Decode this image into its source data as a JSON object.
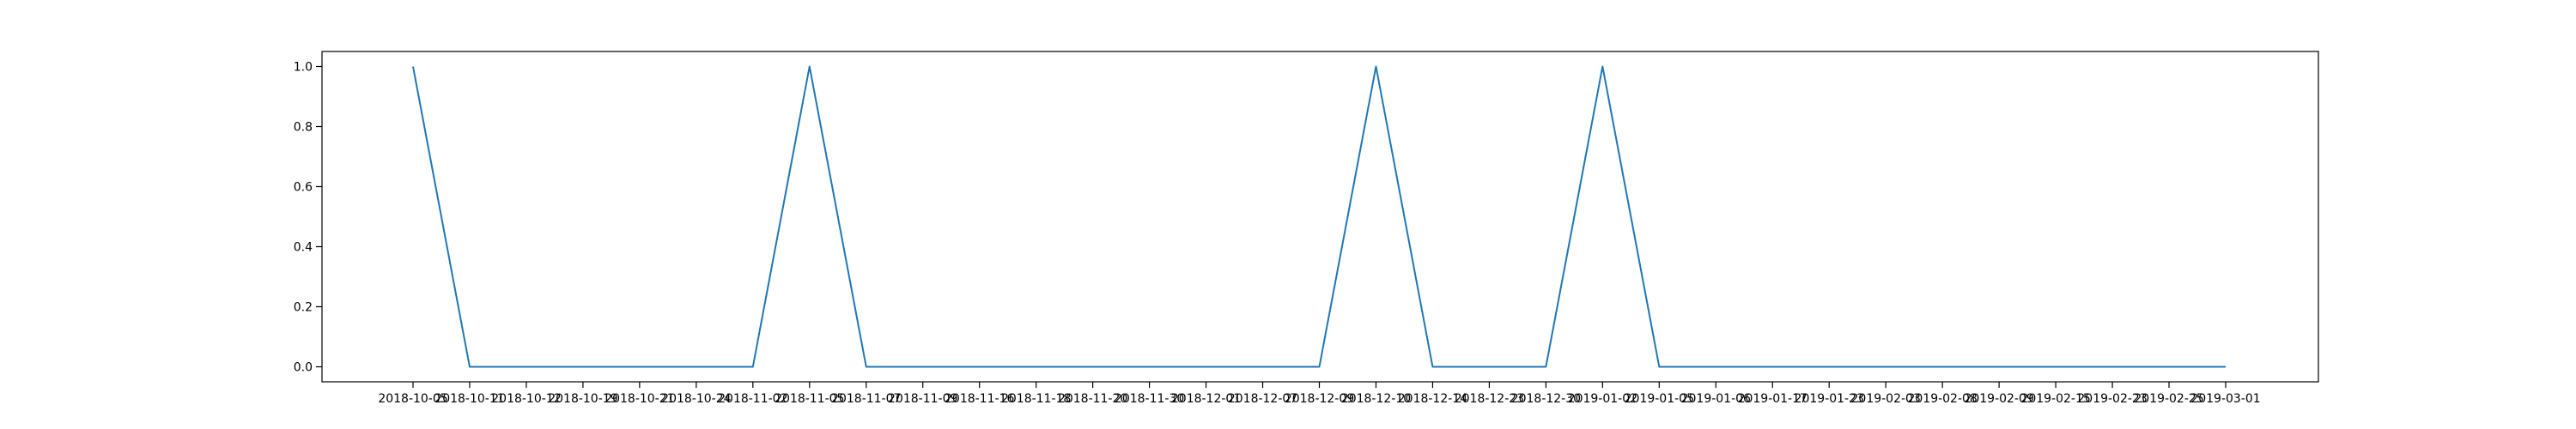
{
  "chart_data": {
    "type": "line",
    "title": "",
    "xlabel": "",
    "ylabel": "",
    "grid": false,
    "colors": {
      "line": "#1f77b4",
      "axes": "#000000"
    },
    "x": [
      "2018-10-05",
      "2018-10-11",
      "2018-10-12",
      "2018-10-19",
      "2018-10-21",
      "2018-10-24",
      "2018-11-02",
      "2018-11-05",
      "2018-11-07",
      "2018-11-09",
      "2018-11-16",
      "2018-11-18",
      "2018-11-20",
      "2018-11-30",
      "2018-12-01",
      "2018-12-07",
      "2018-12-09",
      "2018-12-10",
      "2018-12-14",
      "2018-12-23",
      "2018-12-30",
      "2019-01-02",
      "2019-01-05",
      "2019-01-06",
      "2019-01-17",
      "2019-01-23",
      "2019-02-03",
      "2019-02-08",
      "2019-02-09",
      "2019-02-15",
      "2019-02-23",
      "2019-02-25",
      "2019-03-01"
    ],
    "series": [
      {
        "values": [
          1,
          0,
          0,
          0,
          0,
          0,
          0,
          1,
          0,
          0,
          0,
          0,
          0,
          0,
          0,
          0,
          0,
          1,
          0,
          0,
          0,
          1,
          0,
          0,
          0,
          0,
          0,
          0,
          0,
          0,
          0,
          0,
          0
        ]
      }
    ],
    "yticks": [
      0.0,
      0.2,
      0.4,
      0.6,
      0.8,
      1.0
    ],
    "ytick_labels": [
      "0.0",
      "0.2",
      "0.4",
      "0.6",
      "0.8",
      "1.0"
    ],
    "ylim": [
      -0.05,
      1.05
    ]
  }
}
